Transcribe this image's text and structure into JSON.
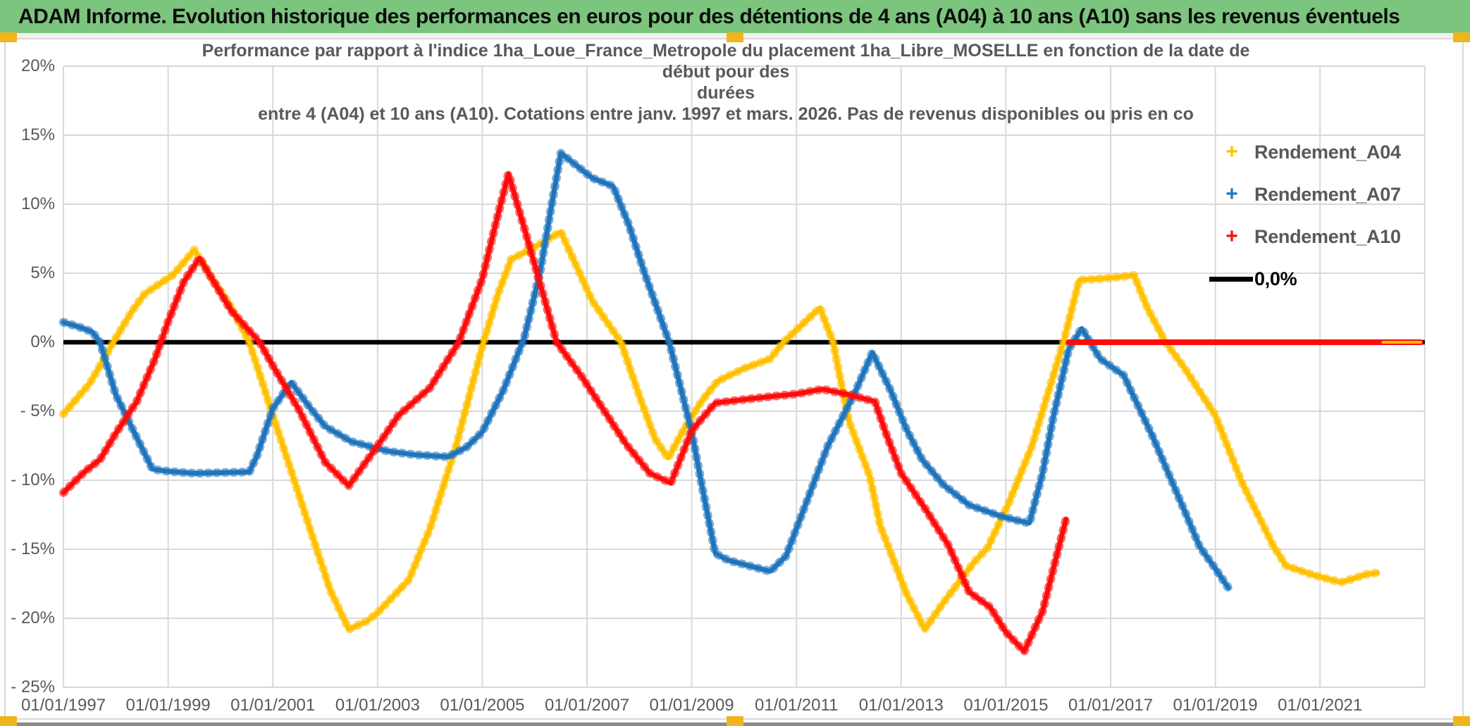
{
  "header": {
    "title": "ADAM Informe. Evolution historique des performances en euros pour des détentions de 4 ans (A04) à 10 ans (A10) sans les revenus éventuels"
  },
  "chart_data": {
    "type": "line",
    "title_lines": [
      "Performance par rapport à l'indice 1ha_Loue_France_Metropole  du placement 1ha_Libre_MOSELLE en fonction de la date de début pour des",
      "durées",
      "entre 4 (A04) et 10 ans (A10). Cotations entre janv. 1997 et mars. 2026. Pas de revenus disponibles ou pris en co"
    ],
    "xlabel": "",
    "ylabel": "",
    "grid": true,
    "legend_position": "right",
    "x_axis": {
      "tick_labels": [
        "01/01/1997",
        "01/01/1999",
        "01/01/2001",
        "01/01/2003",
        "01/01/2005",
        "01/01/2007",
        "01/01/2009",
        "01/01/2011",
        "01/01/2013",
        "01/01/2015",
        "01/01/2017",
        "01/01/2019",
        "01/01/2021"
      ],
      "tick_years": [
        1997,
        1999,
        2001,
        2003,
        2005,
        2007,
        2009,
        2011,
        2013,
        2015,
        2017,
        2019,
        2021
      ],
      "range_years": [
        1997,
        2023
      ]
    },
    "y_axis": {
      "tick_labels": [
        "20%",
        "15%",
        "10%",
        "5%",
        "0%",
        "- 5%",
        "- 10%",
        "- 15%",
        "- 20%",
        "- 25%"
      ],
      "tick_values": [
        20,
        15,
        10,
        5,
        0,
        -5,
        -10,
        -15,
        -20,
        -25
      ],
      "range_pct": [
        -25,
        20
      ]
    },
    "zero_line": {
      "label": "0,0%",
      "color": "#000000",
      "value": 0
    },
    "colors": {
      "grid": "#d9d9d9",
      "axis_text": "#595959",
      "header_green": "#7CC57E",
      "handle_orange": "#F0B41C"
    },
    "series": [
      {
        "name": "Rendement_A04",
        "color": "#FFC000",
        "marker": "+",
        "points": [
          [
            1997.0,
            -5.2
          ],
          [
            1997.5,
            -3.0
          ],
          [
            1998.0,
            0.3
          ],
          [
            1998.3,
            2.2
          ],
          [
            1998.55,
            3.5
          ],
          [
            1999.1,
            4.9
          ],
          [
            1999.5,
            6.7
          ],
          [
            1999.8,
            4.8
          ],
          [
            2000.15,
            2.9
          ],
          [
            2000.55,
            0
          ],
          [
            2001.0,
            -5.3
          ],
          [
            2001.4,
            -9.9
          ],
          [
            2001.75,
            -14.0
          ],
          [
            2002.1,
            -18.0
          ],
          [
            2002.45,
            -20.8
          ],
          [
            2002.8,
            -20.2
          ],
          [
            2003.0,
            -19.6
          ],
          [
            2003.6,
            -17.2
          ],
          [
            2004.0,
            -13.5
          ],
          [
            2004.5,
            -7.5
          ],
          [
            2005.0,
            -0.3
          ],
          [
            2005.3,
            3.5
          ],
          [
            2005.55,
            6.0
          ],
          [
            2006.0,
            6.9
          ],
          [
            2006.5,
            8.0
          ],
          [
            2006.8,
            5.5
          ],
          [
            2007.1,
            3.0
          ],
          [
            2007.65,
            0
          ],
          [
            2008.0,
            -3.9
          ],
          [
            2008.3,
            -7.0
          ],
          [
            2008.55,
            -8.4
          ],
          [
            2008.85,
            -6.3
          ],
          [
            2009.2,
            -4.2
          ],
          [
            2009.5,
            -2.8
          ],
          [
            2010.0,
            -1.9
          ],
          [
            2010.5,
            -1.2
          ],
          [
            2010.75,
            0
          ],
          [
            2011.0,
            0.9
          ],
          [
            2011.45,
            2.5
          ],
          [
            2011.7,
            0
          ],
          [
            2012.0,
            -5.7
          ],
          [
            2012.4,
            -9.7
          ],
          [
            2012.6,
            -13.3
          ],
          [
            2013.1,
            -18.2
          ],
          [
            2013.45,
            -20.8
          ],
          [
            2013.8,
            -18.9
          ],
          [
            2014.4,
            -15.9
          ],
          [
            2014.65,
            -14.9
          ],
          [
            2015.05,
            -11.7
          ],
          [
            2015.5,
            -7.5
          ],
          [
            2016.1,
            0
          ],
          [
            2016.4,
            4.5
          ],
          [
            2016.8,
            4.6
          ],
          [
            2017.1,
            4.7
          ],
          [
            2017.45,
            4.85
          ],
          [
            2017.7,
            2.5
          ],
          [
            2018.05,
            0
          ],
          [
            2018.4,
            -1.8
          ],
          [
            2019.0,
            -5.3
          ],
          [
            2019.5,
            -10.1
          ],
          [
            2020.1,
            -14.7
          ],
          [
            2020.35,
            -16.2
          ],
          [
            2020.9,
            -16.9
          ],
          [
            2021.4,
            -17.4
          ],
          [
            2021.9,
            -16.8
          ],
          [
            2022.1,
            -16.7
          ]
        ],
        "flat_zero_tail": [
          2022.2,
          2022.92
        ]
      },
      {
        "name": "Rendement_A07",
        "color": "#1F74BC",
        "marker": "+",
        "points": [
          [
            1997.0,
            1.45
          ],
          [
            1997.3,
            1.1
          ],
          [
            1997.55,
            0.75
          ],
          [
            1997.7,
            0
          ],
          [
            1998.0,
            -3.8
          ],
          [
            1998.4,
            -6.9
          ],
          [
            1998.7,
            -9.2
          ],
          [
            1999.0,
            -9.35
          ],
          [
            1999.5,
            -9.5
          ],
          [
            2000.0,
            -9.45
          ],
          [
            2000.55,
            -9.4
          ],
          [
            2000.7,
            -8.2
          ],
          [
            2001.0,
            -4.8
          ],
          [
            2001.35,
            -2.9
          ],
          [
            2001.7,
            -4.7
          ],
          [
            2002.0,
            -6.1
          ],
          [
            2002.5,
            -7.2
          ],
          [
            2003.2,
            -7.9
          ],
          [
            2003.7,
            -8.15
          ],
          [
            2004.35,
            -8.3
          ],
          [
            2004.7,
            -7.6
          ],
          [
            2005.0,
            -6.5
          ],
          [
            2005.4,
            -3.5
          ],
          [
            2005.8,
            0.3
          ],
          [
            2006.1,
            5.0
          ],
          [
            2006.35,
            10.5
          ],
          [
            2006.5,
            13.7
          ],
          [
            2006.8,
            12.8
          ],
          [
            2007.1,
            11.9
          ],
          [
            2007.5,
            11.3
          ],
          [
            2007.8,
            8.5
          ],
          [
            2008.1,
            5.0
          ],
          [
            2008.57,
            0
          ],
          [
            2009.0,
            -6.5
          ],
          [
            2009.2,
            -10.5
          ],
          [
            2009.45,
            -15.3
          ],
          [
            2009.7,
            -15.8
          ],
          [
            2010.0,
            -16.1
          ],
          [
            2010.5,
            -16.6
          ],
          [
            2010.8,
            -15.5
          ],
          [
            2011.2,
            -11.5
          ],
          [
            2011.6,
            -7.5
          ],
          [
            2012.1,
            -3.8
          ],
          [
            2012.45,
            -0.75
          ],
          [
            2012.8,
            -3.5
          ],
          [
            2013.1,
            -6.3
          ],
          [
            2013.4,
            -8.5
          ],
          [
            2013.8,
            -10.3
          ],
          [
            2014.3,
            -11.8
          ],
          [
            2014.9,
            -12.6
          ],
          [
            2015.2,
            -12.9
          ],
          [
            2015.45,
            -13.1
          ],
          [
            2015.7,
            -9.5
          ],
          [
            2015.9,
            -5.5
          ],
          [
            2016.2,
            -0.5
          ],
          [
            2016.45,
            1.0
          ],
          [
            2016.8,
            -1.2
          ],
          [
            2017.25,
            -2.4
          ],
          [
            2017.4,
            -3.6
          ],
          [
            2017.8,
            -6.8
          ],
          [
            2018.15,
            -9.9
          ],
          [
            2018.4,
            -12.1
          ],
          [
            2018.7,
            -14.8
          ],
          [
            2019.0,
            -16.4
          ],
          [
            2019.25,
            -17.8
          ]
        ]
      },
      {
        "name": "Rendement_A10",
        "color": "#FD0B0B",
        "marker": "+",
        "points": [
          [
            1997.0,
            -10.9
          ],
          [
            1997.4,
            -9.4
          ],
          [
            1997.7,
            -8.5
          ],
          [
            1998.0,
            -6.6
          ],
          [
            1998.4,
            -4.3
          ],
          [
            1998.75,
            -1.2
          ],
          [
            1999.0,
            1.5
          ],
          [
            1999.3,
            4.4
          ],
          [
            1999.6,
            6.1
          ],
          [
            1999.9,
            4.2
          ],
          [
            2000.2,
            2.3
          ],
          [
            2000.75,
            0
          ],
          [
            2001.0,
            -1.7
          ],
          [
            2001.5,
            -4.9
          ],
          [
            2002.0,
            -8.7
          ],
          [
            2002.45,
            -10.4
          ],
          [
            2003.0,
            -7.5
          ],
          [
            2003.4,
            -5.3
          ],
          [
            2004.0,
            -3.3
          ],
          [
            2004.55,
            0
          ],
          [
            2005.0,
            4.6
          ],
          [
            2005.25,
            8.5
          ],
          [
            2005.5,
            12.2
          ],
          [
            2005.8,
            8.3
          ],
          [
            2006.1,
            4.3
          ],
          [
            2006.42,
            0
          ],
          [
            2006.9,
            -2.5
          ],
          [
            2007.3,
            -4.8
          ],
          [
            2007.75,
            -7.4
          ],
          [
            2008.2,
            -9.5
          ],
          [
            2008.6,
            -10.2
          ],
          [
            2009.0,
            -6.4
          ],
          [
            2009.45,
            -4.4
          ],
          [
            2010.0,
            -4.15
          ],
          [
            2010.6,
            -3.9
          ],
          [
            2011.0,
            -3.75
          ],
          [
            2011.5,
            -3.4
          ],
          [
            2012.0,
            -3.8
          ],
          [
            2012.5,
            -4.3
          ],
          [
            2012.7,
            -6.5
          ],
          [
            2013.0,
            -9.5
          ],
          [
            2013.5,
            -12.3
          ],
          [
            2013.9,
            -14.7
          ],
          [
            2014.3,
            -18.1
          ],
          [
            2014.7,
            -19.2
          ],
          [
            2015.0,
            -21.0
          ],
          [
            2015.35,
            -22.4
          ],
          [
            2015.7,
            -19.5
          ],
          [
            2015.9,
            -16.5
          ],
          [
            2016.15,
            -12.8
          ]
        ],
        "flat_zero_tail": [
          2016.2,
          2022.92
        ]
      }
    ]
  }
}
